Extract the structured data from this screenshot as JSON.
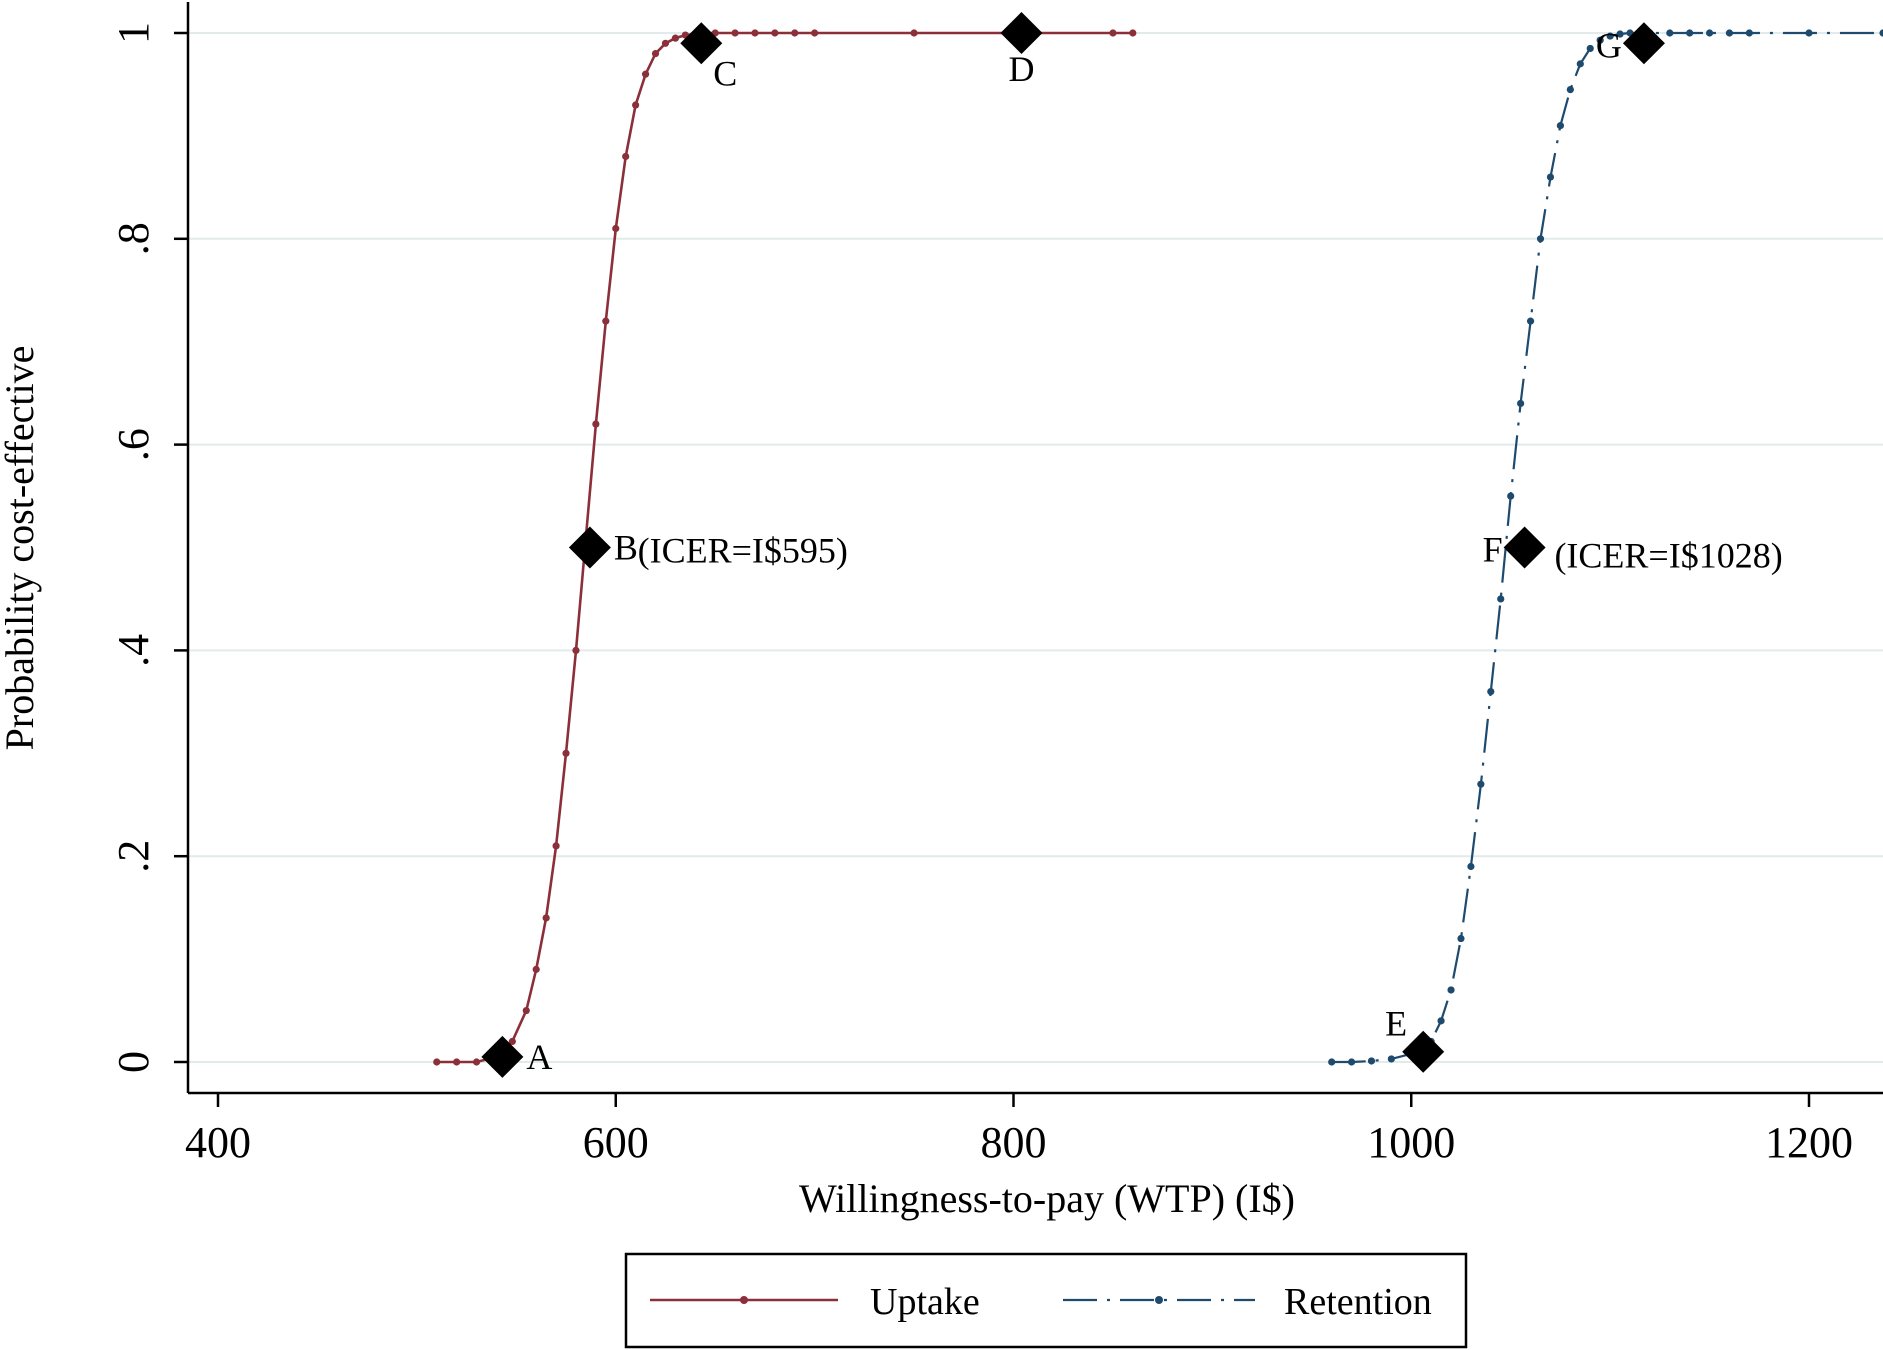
{
  "chart_data": {
    "type": "line",
    "xlabel": "Willingness-to-pay (WTP) (I$)",
    "ylabel": "Probability cost-effective",
    "xlim": [
      400,
      1240
    ],
    "ylim": [
      -0.03,
      1.03
    ],
    "x_ticks": [
      400,
      600,
      800,
      1000,
      1200
    ],
    "x_tick_labels": [
      "400",
      "600",
      "800",
      "1000",
      "1200"
    ],
    "y_ticks": [
      0,
      0.2,
      0.4,
      0.6,
      0.8,
      1
    ],
    "y_tick_labels": [
      "0",
      ".2",
      ".4",
      ".6",
      ".8",
      "1"
    ],
    "grid": true,
    "legend_position": "bottom",
    "series": [
      {
        "name": "Uptake",
        "color": "#8b2f3a",
        "line_style": "solid",
        "x": [
          510,
          520,
          530,
          540,
          548,
          555,
          560,
          565,
          570,
          575,
          580,
          585,
          590,
          595,
          600,
          605,
          610,
          615,
          620,
          625,
          630,
          635,
          640,
          645,
          650,
          660,
          670,
          680,
          690,
          700,
          750,
          800,
          850,
          860
        ],
        "y": [
          0.0,
          0.0,
          0.0,
          0.005,
          0.02,
          0.05,
          0.09,
          0.14,
          0.21,
          0.3,
          0.4,
          0.51,
          0.62,
          0.72,
          0.81,
          0.88,
          0.93,
          0.96,
          0.98,
          0.99,
          0.995,
          0.998,
          0.999,
          1.0,
          1.0,
          1.0,
          1.0,
          1.0,
          1.0,
          1.0,
          1.0,
          1.0,
          1.0,
          1.0
        ]
      },
      {
        "name": "Retention",
        "color": "#1e4a6e",
        "line_style": "dash-dot",
        "x": [
          960,
          970,
          980,
          990,
          1000,
          1005,
          1010,
          1015,
          1020,
          1025,
          1030,
          1035,
          1040,
          1045,
          1050,
          1055,
          1060,
          1065,
          1070,
          1075,
          1080,
          1085,
          1090,
          1095,
          1100,
          1105,
          1110,
          1115,
          1120,
          1130,
          1140,
          1150,
          1160,
          1170,
          1200,
          1240
        ],
        "y": [
          0.0,
          0.0,
          0.001,
          0.003,
          0.008,
          0.012,
          0.02,
          0.04,
          0.07,
          0.12,
          0.19,
          0.27,
          0.36,
          0.45,
          0.55,
          0.64,
          0.72,
          0.8,
          0.86,
          0.91,
          0.945,
          0.97,
          0.985,
          0.993,
          0.997,
          0.999,
          1.0,
          1.0,
          1.0,
          1.0,
          1.0,
          1.0,
          1.0,
          1.0,
          1.0,
          1.0
        ]
      }
    ],
    "markers": [
      {
        "label": "A",
        "x": 543,
        "y": 0.005,
        "label_side": "right"
      },
      {
        "label": "B",
        "x": 587,
        "y": 0.5,
        "label_side": "right"
      },
      {
        "label": "C",
        "x": 643,
        "y": 0.99,
        "label_side": "below-right"
      },
      {
        "label": "D",
        "x": 804,
        "y": 1.0,
        "label_side": "below"
      },
      {
        "label": "E",
        "x": 1006,
        "y": 0.01,
        "label_side": "above-left"
      },
      {
        "label": "F",
        "x": 1057,
        "y": 0.5,
        "label_side": "left"
      },
      {
        "label": "G",
        "x": 1117,
        "y": 0.99,
        "label_side": "left"
      }
    ],
    "annotations": [
      {
        "text": "(ICER=I$595)",
        "x": 611,
        "y": 0.497
      },
      {
        "text": "(ICER=I$1028)",
        "x": 1072,
        "y": 0.492
      }
    ]
  }
}
